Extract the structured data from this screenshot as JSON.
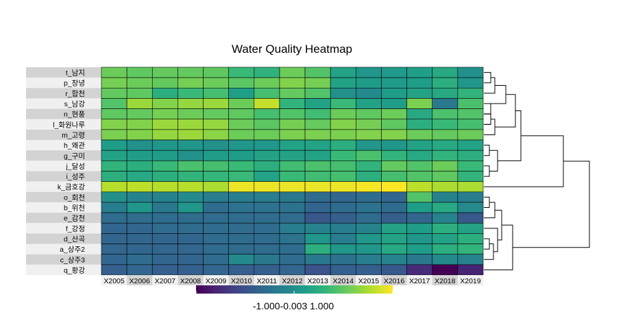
{
  "chart_data": {
    "type": "heatmap",
    "title": "Water Quality Heatmap",
    "columns": [
      "X2005",
      "X2006",
      "X2007",
      "X2008",
      "X2009",
      "X2010",
      "X2011",
      "X2012",
      "X2013",
      "X2014",
      "X2015",
      "X2016",
      "X2017",
      "X2018",
      "X2019"
    ],
    "rows": [
      "t_남지",
      "p_창녕",
      "r_합천",
      "s_남강",
      "n_현풍",
      "l_화원나루",
      "m_고령",
      "h_왜관",
      "g_구미",
      "j_달성",
      "i_성주",
      "k_금호강",
      "o_회천",
      "b_위천",
      "e_감천",
      "f_강정",
      "d_산곡",
      "a_상주2",
      "c_상주3",
      "q_황강"
    ],
    "values": [
      [
        0.55,
        0.5,
        0.52,
        0.52,
        0.5,
        0.35,
        0.28,
        0.55,
        0.45,
        0.15,
        0.05,
        0.08,
        0.12,
        0.2,
        0.0
      ],
      [
        0.58,
        0.55,
        0.52,
        0.58,
        0.55,
        0.48,
        0.55,
        0.62,
        0.58,
        0.15,
        0.1,
        0.08,
        0.1,
        0.25,
        0.05
      ],
      [
        0.52,
        0.5,
        0.25,
        0.35,
        0.4,
        0.12,
        0.4,
        0.52,
        0.45,
        0.0,
        -0.05,
        0.1,
        0.15,
        0.2,
        0.3
      ],
      [
        0.45,
        0.7,
        0.62,
        0.68,
        0.7,
        0.55,
        0.82,
        0.3,
        0.15,
        0.35,
        0.15,
        0.1,
        0.6,
        -0.2,
        0.42
      ],
      [
        0.5,
        0.52,
        0.58,
        0.55,
        0.52,
        0.5,
        0.4,
        0.45,
        0.38,
        0.55,
        0.5,
        0.55,
        0.2,
        0.42,
        0.45
      ],
      [
        0.62,
        0.62,
        0.7,
        0.7,
        0.68,
        0.55,
        0.48,
        0.58,
        0.52,
        0.62,
        0.58,
        0.5,
        0.25,
        0.35,
        0.4
      ],
      [
        0.6,
        0.62,
        0.68,
        0.7,
        0.65,
        0.55,
        0.55,
        0.6,
        0.6,
        0.6,
        0.62,
        0.62,
        0.55,
        0.52,
        0.55
      ],
      [
        0.1,
        0.0,
        0.05,
        0.05,
        0.0,
        0.05,
        0.05,
        0.15,
        0.15,
        0.25,
        0.05,
        0.05,
        0.15,
        0.2,
        0.15
      ],
      [
        0.15,
        0.1,
        0.1,
        0.0,
        0.1,
        0.1,
        0.15,
        0.15,
        0.15,
        0.35,
        0.42,
        0.3,
        0.2,
        0.3,
        0.25
      ],
      [
        0.3,
        0.25,
        0.35,
        0.42,
        0.4,
        0.35,
        0.25,
        0.38,
        0.42,
        0.4,
        0.3,
        0.52,
        0.45,
        0.55,
        0.35
      ],
      [
        0.25,
        0.2,
        0.25,
        0.3,
        0.32,
        0.35,
        0.15,
        0.35,
        0.38,
        0.4,
        0.25,
        0.4,
        0.45,
        0.5,
        0.3
      ],
      [
        0.78,
        0.8,
        0.78,
        0.78,
        0.75,
        0.95,
        0.95,
        0.95,
        0.95,
        0.95,
        0.98,
        1.0,
        0.8,
        0.75,
        0.75
      ],
      [
        0.0,
        -0.1,
        -0.1,
        -0.05,
        -0.15,
        -0.15,
        -0.15,
        -0.2,
        -0.3,
        -0.35,
        -0.3,
        -0.35,
        0.45,
        -0.1,
        -0.15
      ],
      [
        -0.15,
        0.05,
        -0.2,
        0.05,
        -0.3,
        -0.25,
        -0.25,
        -0.25,
        -0.35,
        -0.3,
        -0.25,
        -0.3,
        0.1,
        0.2,
        -0.05
      ],
      [
        -0.3,
        -0.3,
        -0.3,
        -0.3,
        -0.3,
        -0.3,
        -0.3,
        -0.3,
        -0.45,
        -0.4,
        -0.3,
        -0.4,
        -0.35,
        -0.1,
        -0.45
      ],
      [
        -0.35,
        -0.35,
        -0.3,
        -0.3,
        -0.3,
        -0.3,
        -0.3,
        -0.15,
        -0.1,
        -0.15,
        -0.1,
        0.15,
        0.1,
        0.25,
        0.15
      ],
      [
        -0.35,
        -0.35,
        -0.35,
        -0.35,
        -0.3,
        -0.3,
        -0.3,
        -0.25,
        0.05,
        -0.15,
        0.05,
        0.15,
        0.05,
        0.15,
        0.25
      ],
      [
        -0.35,
        -0.35,
        -0.35,
        -0.35,
        -0.3,
        -0.3,
        -0.3,
        -0.3,
        0.25,
        0.05,
        0.05,
        0.2,
        0.1,
        0.25,
        0.3
      ],
      [
        -0.35,
        -0.3,
        -0.35,
        -0.35,
        -0.3,
        -0.05,
        -0.2,
        -0.3,
        -0.2,
        -0.25,
        -0.15,
        -0.1,
        -0.2,
        -0.05,
        -0.1
      ],
      [
        -0.4,
        -0.35,
        -0.4,
        -0.4,
        -0.35,
        -0.4,
        -0.4,
        -0.35,
        -0.5,
        -0.4,
        -0.4,
        -0.45,
        -0.75,
        -1.0,
        -0.8
      ]
    ],
    "colorbar": {
      "min": -1.0,
      "max": 1.0,
      "tick_labels": [
        "-1.000",
        "-0.003",
        "1.000"
      ],
      "colormap": "viridis"
    },
    "row_dendrogram": "right",
    "legend_position": "bottom"
  }
}
